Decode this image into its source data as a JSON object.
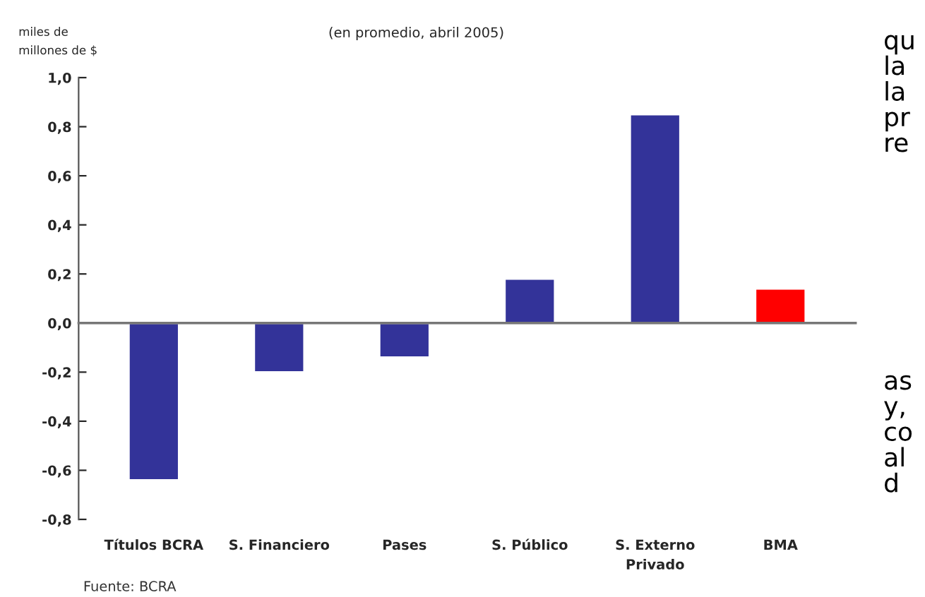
{
  "chart_data": {
    "type": "bar",
    "subtitle": "(en promedio, abril 2005)",
    "ylabel": "miles de\nmillones de $",
    "categories": [
      "Títulos BCRA",
      "S. Financiero",
      "Pases",
      "S. Público",
      "S. Externo\nPrivado",
      "BMA"
    ],
    "values": [
      -0.64,
      -0.2,
      -0.14,
      0.18,
      0.85,
      0.14
    ],
    "colors": [
      "#333399",
      "#333399",
      "#333399",
      "#333399",
      "#333399",
      "#ff0000"
    ],
    "ylim": [
      -0.8,
      1.0
    ],
    "yticks": [
      {
        "value": -0.8,
        "label": "-0,8"
      },
      {
        "value": -0.6,
        "label": "-0,6"
      },
      {
        "value": -0.4,
        "label": "-0,4"
      },
      {
        "value": -0.2,
        "label": "-0,2"
      },
      {
        "value": 0.0,
        "label": "0,0"
      },
      {
        "value": 0.2,
        "label": "0,2"
      },
      {
        "value": 0.4,
        "label": "0,4"
      },
      {
        "value": 0.6,
        "label": "0,6"
      },
      {
        "value": 0.8,
        "label": "0,8"
      },
      {
        "value": 1.0,
        "label": "1,0"
      }
    ],
    "legend": false,
    "annotations": [
      "Fuente: BCRA",
      "qu\nla\nla\npr\nre",
      "as\ny,\nco\nal\nd"
    ]
  }
}
